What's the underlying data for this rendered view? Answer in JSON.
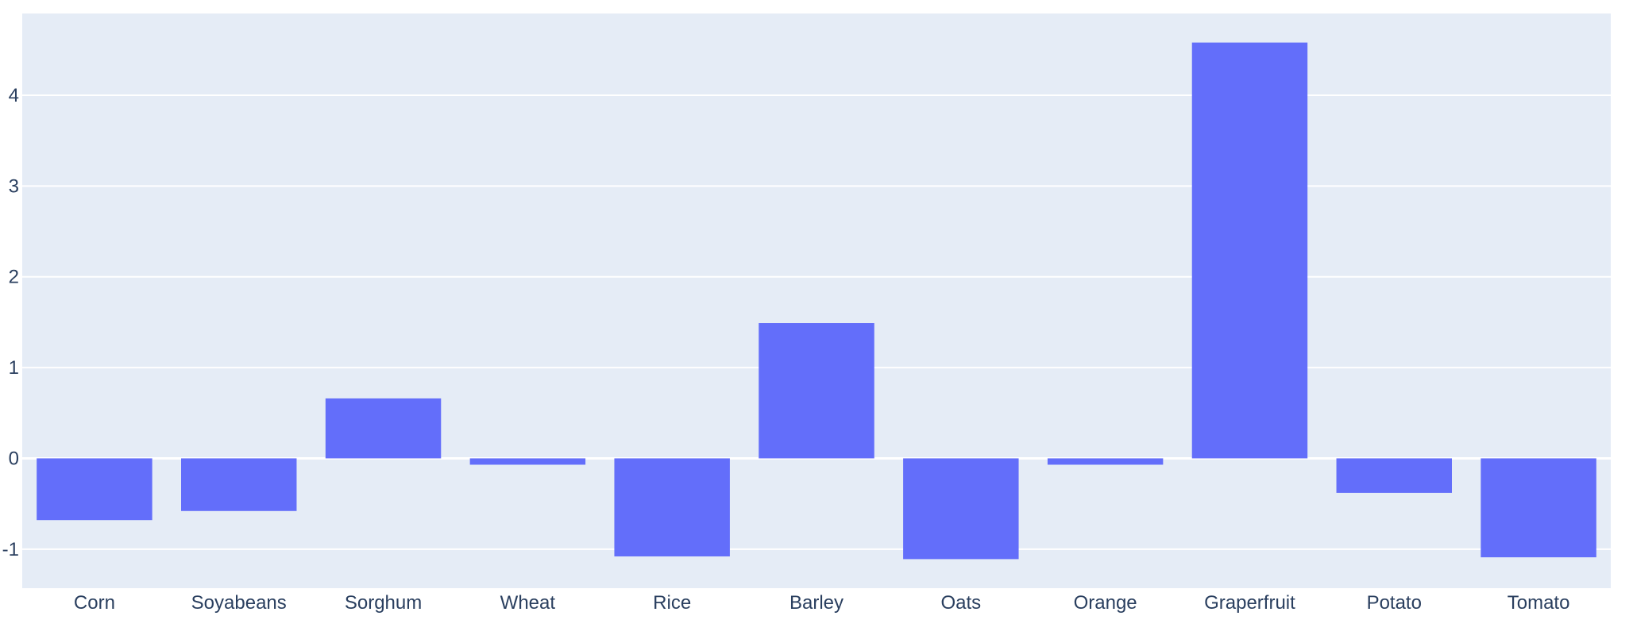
{
  "chart_data": {
    "type": "bar",
    "categories": [
      "Corn",
      "Soyabeans",
      "Sorghum",
      "Wheat",
      "Rice",
      "Barley",
      "Oats",
      "Orange",
      "Graperfruit",
      "Potato",
      "Tomato"
    ],
    "values": [
      -0.68,
      -0.58,
      0.66,
      -0.07,
      -1.08,
      1.49,
      -1.11,
      -0.07,
      4.58,
      -0.38,
      -1.09
    ],
    "title": "",
    "xlabel": "",
    "ylabel": "",
    "ylim": [
      -1.43,
      4.9
    ],
    "yticks": [
      -1,
      0,
      1,
      2,
      3,
      4
    ],
    "grid": true,
    "colors": {
      "bar": "#636efa",
      "plot_bg": "#e5ecf6",
      "grid": "#ffffff",
      "text": "#2a3f5f"
    }
  }
}
